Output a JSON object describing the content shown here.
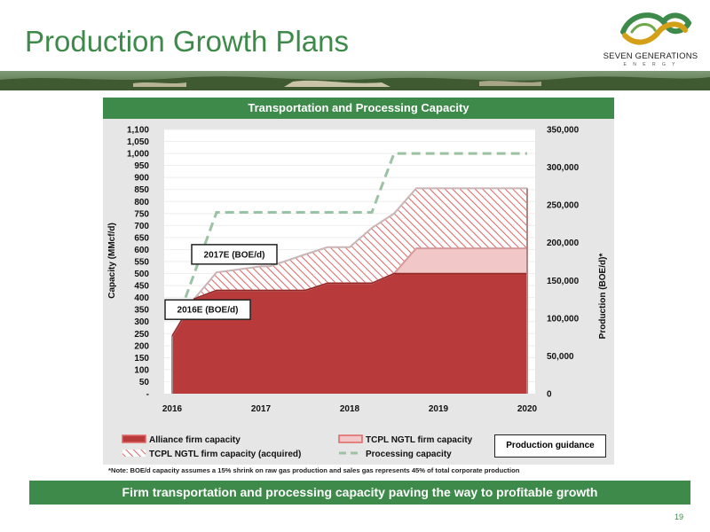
{
  "header": {
    "title": "Production Growth Plans",
    "brand": "SEVEN GENERATIONS",
    "brand_sub": "E N E R G Y"
  },
  "panel_title": "Transportation and Processing Capacity",
  "note": "*Note: BOE/d capacity assumes a 15% shrink on raw gas production and sales gas represents 45% of total corporate production",
  "footer_text": "Firm transportation and processing capacity paving the way to profitable growth",
  "page_number": "19",
  "guidance_label": "Production guidance",
  "chart_data": {
    "type": "area",
    "title": "Transportation and Processing Capacity",
    "xlabel": "",
    "ylabel": "Capacity (MMcf/d)",
    "y2label": "Production (BOE/d)*",
    "x_ticks": [
      "2016",
      "2017",
      "2018",
      "2019",
      "2020"
    ],
    "y_ticks": [
      "-",
      "50",
      "100",
      "150",
      "200",
      "250",
      "300",
      "350",
      "400",
      "450",
      "500",
      "550",
      "600",
      "650",
      "700",
      "750",
      "800",
      "850",
      "900",
      "950",
      "1,000",
      "1,050",
      "1,100"
    ],
    "y2_ticks": [
      "0",
      "50,000",
      "100,000",
      "150,000",
      "200,000",
      "250,000",
      "300,000",
      "350,000"
    ],
    "ylim": [
      0,
      1100
    ],
    "y2lim": [
      0,
      350000
    ],
    "xlim": [
      2016,
      2020
    ],
    "x": [
      2016.0,
      2016.25,
      2016.5,
      2017.0,
      2017.1,
      2017.5,
      2017.75,
      2018.0,
      2018.25,
      2018.5,
      2018.75,
      2019.0,
      2019.5,
      2020.0
    ],
    "series": [
      {
        "name": "Alliance firm capacity",
        "values": [
          240,
          395,
          430,
          430,
          430,
          430,
          460,
          460,
          460,
          500,
          500,
          500,
          500,
          500
        ]
      },
      {
        "name": "TCPL NGTL firm capacity",
        "values": [
          0,
          0,
          0,
          0,
          0,
          0,
          0,
          0,
          0,
          0,
          105,
          105,
          105,
          105
        ]
      },
      {
        "name": "TCPL NGTL firm capacity (acquired)",
        "values": [
          0,
          0,
          75,
          100,
          100,
          150,
          150,
          150,
          230,
          250,
          250,
          250,
          250,
          250
        ]
      },
      {
        "name": "Processing capacity",
        "x": [
          2016.15,
          2016.5,
          2017.0,
          2018.0,
          2018.25,
          2018.5,
          2019.0,
          2020.0
        ],
        "values": [
          400,
          755,
          755,
          755,
          755,
          1000,
          1000,
          1000
        ]
      }
    ],
    "annotations": [
      {
        "text": "2016E (BOE/d)",
        "x": 2016.4,
        "y": 350
      },
      {
        "text": "2017E (BOE/d)",
        "x": 2016.7,
        "y": 580
      }
    ],
    "colors": {
      "alliance": "#b93a3a",
      "ngtl": "#f1c7c7",
      "acquired_hatch": "#e06565",
      "processing": "#9cc2a4",
      "panel": "#e6e6e6",
      "accent": "#3e8a4a"
    },
    "legend_placement": "bottom",
    "grid": true
  }
}
